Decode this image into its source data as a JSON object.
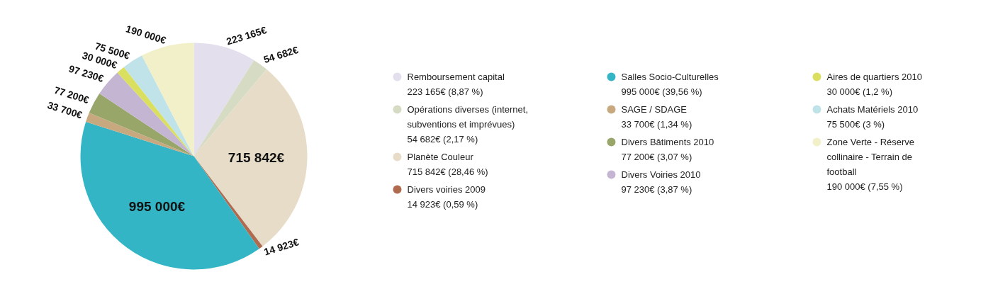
{
  "chart_data": {
    "type": "pie",
    "categories": [
      "Remboursement capital",
      "Opérations diverses (internet, subventions et imprévues)",
      "Planète Couleur",
      "Divers voiries 2009",
      "Salles Socio-Culturelles",
      "SAGE / SDAGE",
      "Divers Bâtiments 2010",
      "Divers Voiries 2010",
      "Aires de quartiers 2010",
      "Achats Matériels 2010",
      "Zone Verte - Réserve collinaire - Terrain de football"
    ],
    "values": [
      223165,
      54682,
      715842,
      14923,
      995000,
      33700,
      77200,
      97230,
      30000,
      75500,
      190000
    ],
    "colors": [
      "#e3dfec",
      "#d5dcc3",
      "#e6dcc8",
      "#b06a50",
      "#33b5c5",
      "#c8a97f",
      "#98a66a",
      "#c4b5d3",
      "#dbdf60",
      "#bfe3e8",
      "#f1f0c8"
    ],
    "value_labels": [
      "223 165€",
      "54 682€",
      "715 842€",
      "14 923€",
      "995 000€",
      "33 700€",
      "77 200€",
      "97 230€",
      "30 000€",
      "75 500€",
      "190 000€"
    ],
    "annotations": [
      "223 165€ (8,87 %)",
      "54 682€ (2,17 %)",
      "715 842€ (28,46 %)",
      "14 923€ (0,59 %)",
      "995 000€ (39,56 %)",
      "33 700€ (1,34 %)",
      "77 200€ (3,07 %)",
      "97 230€ (3,87 %)",
      "30 000€ (1,2 %)",
      "75 500€ (3 %)",
      "190 000€ (7,55 %)"
    ],
    "legend": "right"
  }
}
